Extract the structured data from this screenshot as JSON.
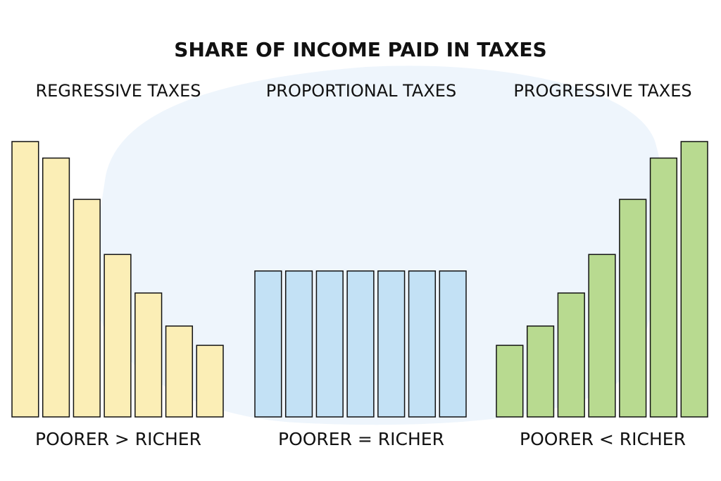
{
  "title": "SHARE OF INCOME PAID IN TAXES",
  "chart_data": [
    {
      "type": "bar",
      "title": "REGRESSIVE TAXES",
      "xlabel": "POORER > RICHER",
      "color": "#fbeeb6",
      "values": [
        100,
        94,
        79,
        59,
        45,
        33,
        26
      ],
      "ylim": [
        0,
        100
      ]
    },
    {
      "type": "bar",
      "title": "PROPORTIONAL TAXES",
      "xlabel": "POORER = RICHER",
      "color": "#c3e1f5",
      "values": [
        53,
        53,
        53,
        53,
        53,
        53,
        53
      ],
      "ylim": [
        0,
        100
      ]
    },
    {
      "type": "bar",
      "title": "PROGRESSIVE TAXES",
      "xlabel": "POORER < RICHER",
      "color": "#b8da90",
      "values": [
        26,
        33,
        45,
        59,
        79,
        94,
        100
      ],
      "ylim": [
        0,
        100
      ]
    }
  ]
}
